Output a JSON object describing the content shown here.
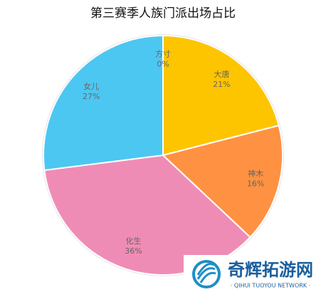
{
  "chart_data": {
    "type": "pie",
    "title": "第三赛季人族门派出场占比",
    "categories": [
      "方寸",
      "大唐",
      "神木",
      "化生",
      "女儿"
    ],
    "values": [
      0,
      21,
      16,
      36,
      27
    ],
    "value_labels": [
      "0%",
      "21%",
      "16%",
      "36%",
      "27%"
    ],
    "colors": [
      "#f2f2f2",
      "#fdc400",
      "#ff9142",
      "#ef8cb5",
      "#4cc7f2"
    ]
  },
  "watermark": {
    "name": "奇辉拓游网",
    "subtitle": "· QIHUI TUOYOU NETWORK ·"
  }
}
